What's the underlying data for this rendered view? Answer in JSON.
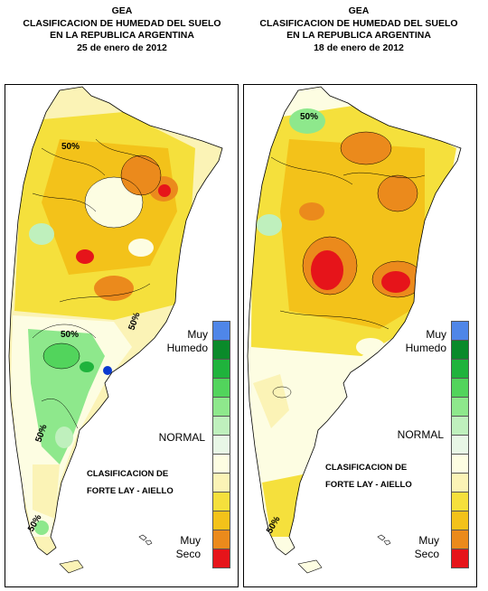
{
  "maps": [
    {
      "id": "left",
      "title": [
        "GEA",
        "CLASIFICACION DE HUMEDAD DEL SUELO",
        "EN LA REPUBLICA ARGENTINA",
        "25 de enero de 2012"
      ],
      "classification_label": [
        "CLASIFICACION DE",
        "FORTE LAY - AIELLO"
      ],
      "contour_labels": [
        "50%",
        "50%",
        "50%",
        "50%",
        "50%"
      ]
    },
    {
      "id": "right",
      "title": [
        "GEA",
        "CLASIFICACION DE HUMEDAD DEL SUELO",
        "EN LA REPUBLICA ARGENTINA",
        "18 de enero de 2012"
      ],
      "classification_label": [
        "CLASIFICACION DE",
        "FORTE LAY - AIELLO"
      ],
      "contour_labels": [
        "50%",
        "50%"
      ]
    }
  ],
  "legend": {
    "top_label": [
      "Muy",
      "Humedo"
    ],
    "middle_label": "NORMAL",
    "bottom_label": [
      "Muy",
      "Seco"
    ],
    "colors": [
      "#4f86e8",
      "#0a8a2a",
      "#1fb33c",
      "#52d45c",
      "#8ee88c",
      "#bff0bd",
      "#e8f7e6",
      "#fdfde2",
      "#fbf3b6",
      "#f5e03c",
      "#f3c21a",
      "#eb8a1c",
      "#e6141a"
    ]
  }
}
